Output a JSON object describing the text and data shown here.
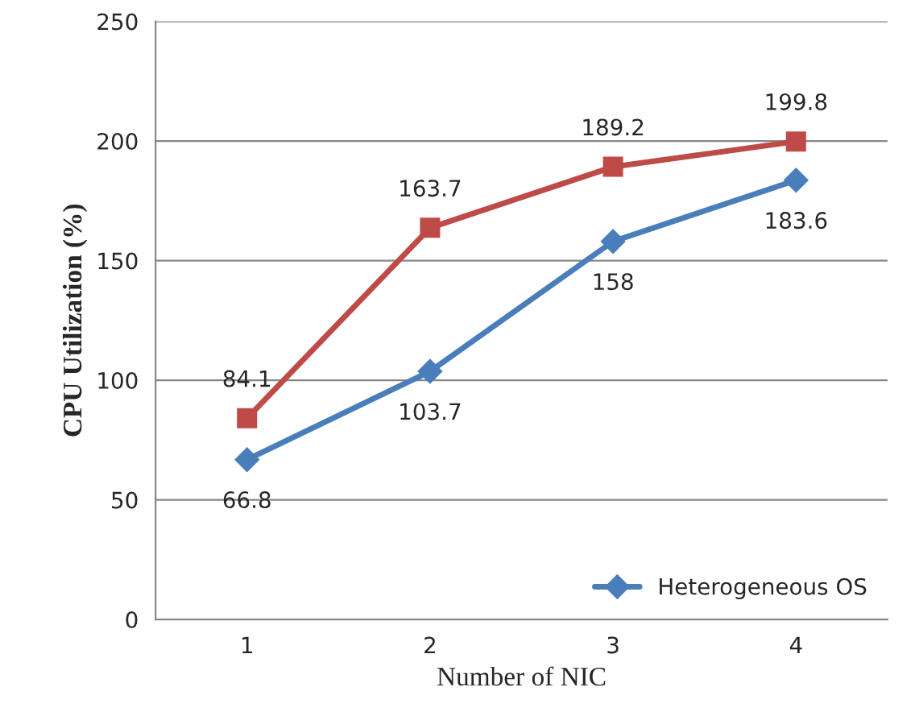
{
  "chart_data": {
    "type": "line",
    "xlabel": "Number of NIC",
    "ylabel": "CPU Utilization (%)",
    "categories": [
      "1",
      "2",
      "3",
      "4"
    ],
    "series": [
      {
        "name": "Heterogeneous OS",
        "color": "#4a7ebb",
        "marker": "diamond",
        "values": [
          66.8,
          103.7,
          158,
          183.6
        ]
      },
      {
        "color": "#be4b48",
        "marker": "square",
        "values": [
          84.1,
          163.7,
          189.2,
          199.8
        ]
      }
    ],
    "ylim": [
      0,
      250
    ],
    "yticks": [
      0,
      50,
      100,
      150,
      200,
      250
    ],
    "grid": "y",
    "legend": "bottom right",
    "data_labels": true,
    "line_style": "solid"
  }
}
